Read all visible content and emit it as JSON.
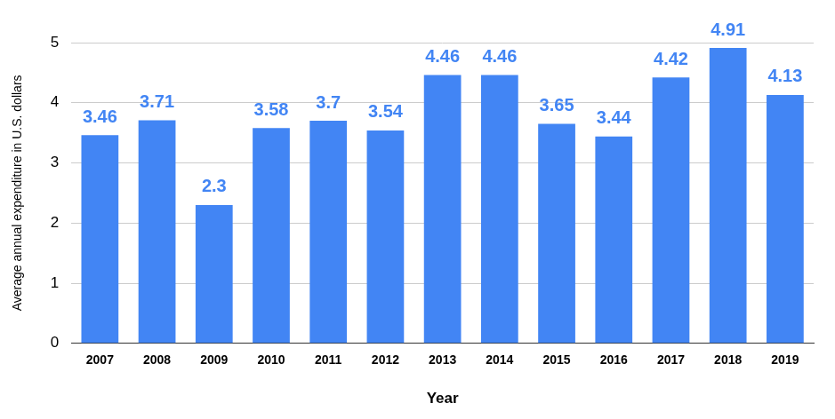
{
  "chart_data": {
    "type": "bar",
    "categories": [
      "2007",
      "2008",
      "2009",
      "2010",
      "2011",
      "2012",
      "2013",
      "2014",
      "2015",
      "2016",
      "2017",
      "2018",
      "2019"
    ],
    "values": [
      3.46,
      3.71,
      2.3,
      3.58,
      3.7,
      3.54,
      4.46,
      4.46,
      3.65,
      3.44,
      4.42,
      4.91,
      4.13
    ],
    "color": "#4285f4",
    "ylim": [
      0,
      5
    ],
    "yticks": [
      0,
      1,
      2,
      3,
      4,
      5
    ],
    "grid": true,
    "data_labels": true,
    "xlabel": "Year",
    "ylabel": "Average annual expenditure in U.S. dollars"
  }
}
